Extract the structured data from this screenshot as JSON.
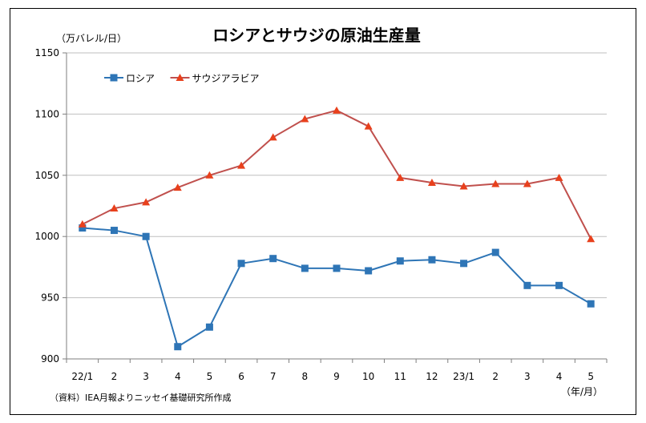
{
  "chart_data": {
    "type": "line",
    "title": "ロシアとサウジの原油生産量",
    "ylabel": "（万バレル/日）",
    "xlabel": "（年/月）",
    "categories": [
      "22/1",
      "2",
      "3",
      "4",
      "5",
      "6",
      "7",
      "8",
      "9",
      "10",
      "11",
      "12",
      "23/1",
      "2",
      "3",
      "4",
      "5"
    ],
    "ylim": [
      900,
      1150
    ],
    "yticks": [
      900,
      950,
      1000,
      1050,
      1100,
      1150
    ],
    "grid": true,
    "legend_position": "top-left",
    "series": [
      {
        "name": "ロシア",
        "color": "#2e75b6",
        "marker": "square",
        "values": [
          1007,
          1005,
          1000,
          910,
          926,
          978,
          982,
          974,
          974,
          972,
          980,
          981,
          978,
          987,
          960,
          960,
          945
        ]
      },
      {
        "name": "サウジアラビア",
        "color": "#c0504d",
        "marker": "triangle",
        "marker_color": "#e8401c",
        "values": [
          1010,
          1023,
          1028,
          1040,
          1050,
          1058,
          1081,
          1096,
          1103,
          1090,
          1048,
          1044,
          1041,
          1043,
          1043,
          1048,
          998
        ]
      }
    ],
    "source_note": "（資料）IEA月報よりニッセイ基礎研究所作成"
  }
}
